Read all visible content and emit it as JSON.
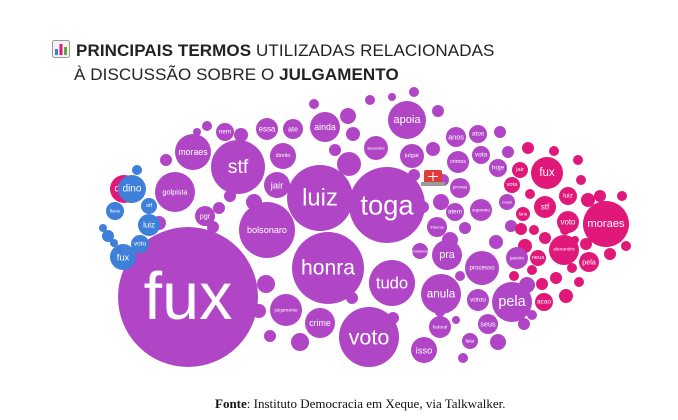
{
  "title": {
    "icon": "bar-chart-icon",
    "line1_bold": "PRINCIPAIS TERMOS",
    "line1_rest": " UTILIZADAS RELACIONADAS",
    "line2_rest": "À DISCUSSÃO SOBRE O ",
    "line2_bold": "JULGAMENTO"
  },
  "source": {
    "label": "Fonte",
    "text": ": Instituto Democracia em Xeque, via Talkwalker."
  },
  "colors": {
    "purple": "#b046c6",
    "magenta": "#e0187a",
    "blue": "#3d7fd9"
  },
  "chart_data": {
    "type": "bubble",
    "title": "PRINCIPAIS TERMOS UTILIZADAS RELACIONADAS À DISCUSSÃO SOBRE O JULGAMENTO",
    "series": [
      {
        "color": "#b046c6",
        "terms": [
          "fux",
          "toga",
          "luiz",
          "honra",
          "stf",
          "bolsonaro",
          "voto",
          "tudo",
          "anula",
          "pela",
          "pra",
          "jair",
          "apoia",
          "moraes",
          "golpista",
          "processo",
          "crime",
          "isso",
          "ainda",
          "direito",
          "julgar",
          "essa",
          "ate",
          "nem",
          "pgr",
          "julgamento",
          "votou",
          "seus",
          "federal",
          "falar",
          "tentativas",
          "tribunal",
          "alem",
          "supremo",
          "provas",
          "anos",
          "atos",
          "crimes",
          "vota",
          "hoje",
          "alexandre",
          "janeiro",
          "brasil"
        ]
      },
      {
        "color": "#e0187a",
        "terms": [
          "fux",
          "moraes",
          "stf",
          "voto",
          "luiz",
          "alexandre",
          "pela",
          "dino",
          "acao",
          "neus",
          "faria",
          "vota",
          "jair"
        ]
      },
      {
        "color": "#3d7fd9",
        "terms": [
          "dino",
          "flavio",
          "fux",
          "luiz",
          "voto",
          "stf"
        ]
      }
    ]
  }
}
